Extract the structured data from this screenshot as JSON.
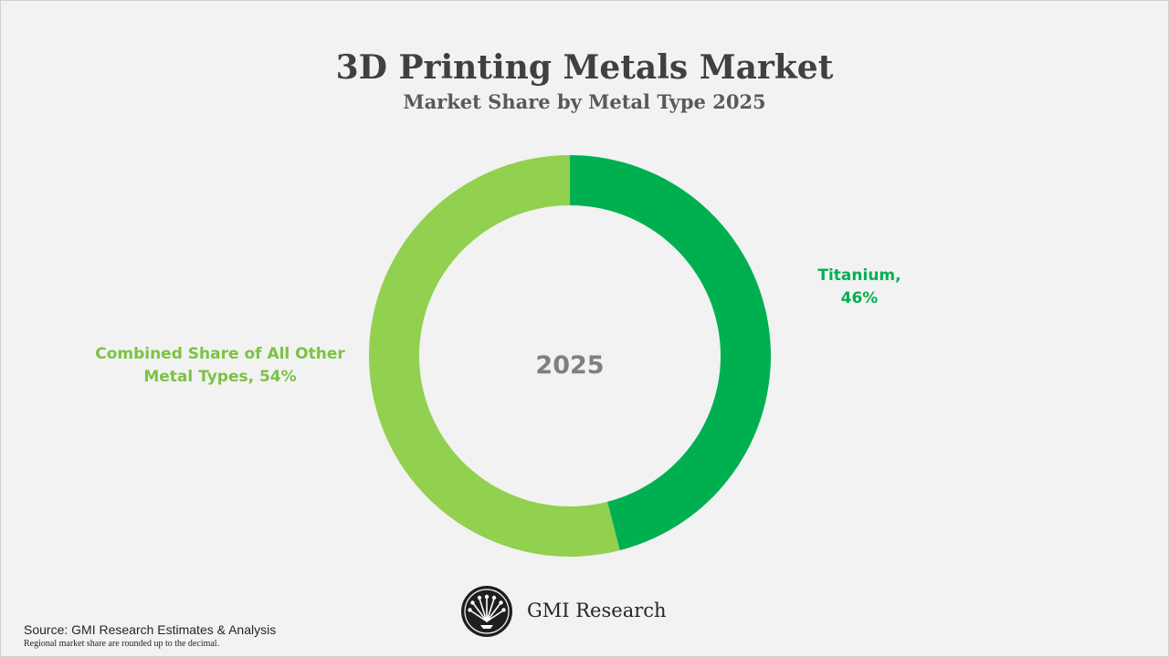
{
  "chart_data": {
    "type": "pie",
    "title": "3D Printing Metals Market",
    "subtitle": "Market Share by Metal Type 2025",
    "center_label": "2025",
    "slices": [
      {
        "name": "Titanium",
        "label_line1": "Titanium,",
        "label_line2": "46%",
        "value": 46,
        "color": "#00b050"
      },
      {
        "name": "Combined Share of All Other Metal Types",
        "label_line1": "Combined Share of All Other",
        "label_line2": "Metal Types, 54%",
        "value": 54,
        "color": "#92d050"
      }
    ],
    "legend": "none"
  },
  "branding": {
    "name": "GMI Research",
    "logo_icon": "fan-logo-icon"
  },
  "footer": {
    "source": "Source: GMI Research Estimates & Analysis",
    "note": "Regional market share are rounded up to the decimal."
  },
  "colors": {
    "background": "#f2f2f2",
    "titanium": "#00b050",
    "others": "#92d050",
    "others_label": "#7dc243"
  }
}
